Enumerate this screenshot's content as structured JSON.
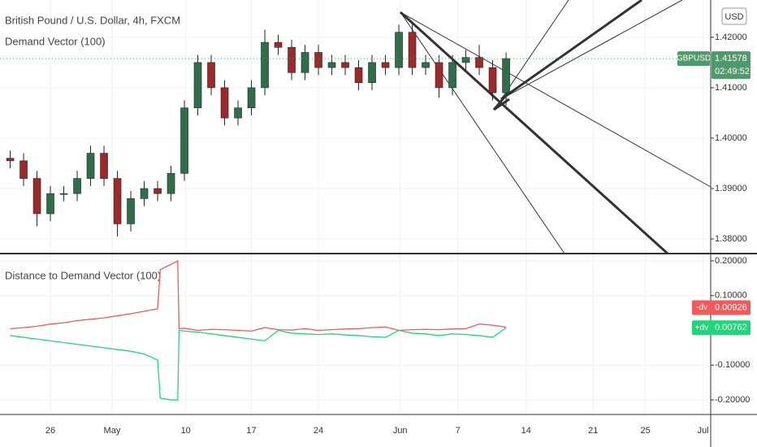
{
  "chart_data": [
    {
      "type": "candlestick",
      "title": "British Pound / U.S. Dollar, 4h, FXCM",
      "subtitle": "Demand Vector (100)",
      "currency": "USD",
      "symbol": "GBPUSD",
      "countdown": "02:49:52",
      "up_color": "#2f6e4a",
      "down_color": "#9c2a2a",
      "last_color": "#4f9a6c",
      "x": [
        -3,
        -2,
        -1,
        0,
        1,
        2,
        3,
        4,
        5,
        6,
        7,
        8,
        9,
        10,
        11,
        12,
        13,
        14,
        15,
        16,
        17,
        18,
        19,
        20,
        21,
        22,
        23,
        24,
        25,
        26,
        27,
        28,
        29,
        30,
        31,
        32,
        33,
        34
      ],
      "open": [
        1.396,
        1.3955,
        1.392,
        1.385,
        1.389,
        1.389,
        1.392,
        1.397,
        1.392,
        1.383,
        1.388,
        1.39,
        1.389,
        1.393,
        1.406,
        1.415,
        1.41,
        1.404,
        1.406,
        1.41,
        1.419,
        1.418,
        1.413,
        1.417,
        1.414,
        1.415,
        1.414,
        1.411,
        1.415,
        1.414,
        1.421,
        1.414,
        1.415,
        1.41,
        1.415,
        1.416,
        1.414,
        1.409
      ],
      "high": [
        1.3975,
        1.397,
        1.3935,
        1.3905,
        1.3905,
        1.3935,
        1.3985,
        1.3985,
        1.3935,
        1.3895,
        1.3915,
        1.3915,
        1.3945,
        1.4075,
        1.4165,
        1.4165,
        1.4115,
        1.4075,
        1.4115,
        1.4215,
        1.4205,
        1.4195,
        1.4185,
        1.4185,
        1.4165,
        1.4165,
        1.4155,
        1.4165,
        1.4165,
        1.4225,
        1.4225,
        1.4165,
        1.4165,
        1.4165,
        1.4175,
        1.4185,
        1.4155,
        1.417
      ],
      "low": [
        1.394,
        1.3905,
        1.3825,
        1.3835,
        1.3875,
        1.3875,
        1.3905,
        1.3905,
        1.3805,
        1.3815,
        1.3865,
        1.3875,
        1.3875,
        1.3915,
        1.4045,
        1.4085,
        1.4025,
        1.4025,
        1.4045,
        1.4085,
        1.4165,
        1.4115,
        1.4115,
        1.4125,
        1.4125,
        1.4125,
        1.4095,
        1.4095,
        1.4125,
        1.4125,
        1.4125,
        1.4125,
        1.408,
        1.4085,
        1.4135,
        1.4125,
        1.4075,
        1.4065
      ],
      "close": [
        1.3955,
        1.392,
        1.385,
        1.389,
        1.389,
        1.392,
        1.397,
        1.392,
        1.383,
        1.388,
        1.39,
        1.389,
        1.393,
        1.406,
        1.415,
        1.41,
        1.404,
        1.406,
        1.41,
        1.419,
        1.418,
        1.413,
        1.417,
        1.414,
        1.415,
        1.414,
        1.411,
        1.415,
        1.414,
        1.421,
        1.414,
        1.415,
        1.41,
        1.415,
        1.416,
        1.414,
        1.409,
        1.41578
      ],
      "xlim": [
        -3.76,
        49.27
      ],
      "ylim": [
        1.3771,
        1.4274
      ],
      "yticks": [
        {
          "value": 1.42,
          "label": "1.42000"
        },
        {
          "value": 1.41,
          "label": "1.41000"
        },
        {
          "value": 1.4,
          "label": "1.40000"
        },
        {
          "value": 1.39,
          "label": "1.39000"
        },
        {
          "value": 1.38,
          "label": "1.38000"
        }
      ],
      "grid": true
    },
    {
      "type": "line",
      "title": "Distance to Demand Vector (100)",
      "x": [
        -3,
        -2,
        -1,
        0,
        1,
        2,
        3,
        4,
        5,
        6,
        7,
        8,
        8.2,
        9,
        9.5,
        9.6,
        10,
        11,
        12,
        13,
        14,
        15,
        16,
        17,
        18,
        19,
        20,
        21,
        22,
        23,
        24,
        25,
        26,
        27,
        28,
        29,
        30,
        31,
        32,
        33,
        34
      ],
      "series": [
        {
          "name": "-dv",
          "color": "#f05a5a",
          "values": [
            0.005,
            0.008,
            0.012,
            0.018,
            0.022,
            0.028,
            0.032,
            0.036,
            0.042,
            0.048,
            0.055,
            0.062,
            0.175,
            0.19,
            0.2,
            0.005,
            0.006,
            0.0,
            0.003,
            0.002,
            0.0,
            -0.002,
            0.008,
            0.002,
            0.001,
            0.005,
            0.0,
            0.002,
            0.004,
            0.005,
            0.008,
            0.01,
            0.0,
            0.002,
            0.003,
            0.002,
            0.004,
            0.005,
            0.018,
            0.015,
            0.00926
          ]
        },
        {
          "name": "+dv",
          "color": "#1fd67a",
          "values": [
            -0.015,
            -0.02,
            -0.025,
            -0.03,
            -0.035,
            -0.04,
            -0.045,
            -0.05,
            -0.055,
            -0.06,
            -0.068,
            -0.085,
            -0.195,
            -0.2,
            -0.2,
            0.0,
            -0.002,
            -0.005,
            -0.01,
            -0.015,
            -0.02,
            -0.025,
            -0.03,
            0.0,
            -0.008,
            -0.01,
            -0.012,
            -0.01,
            -0.013,
            -0.015,
            -0.018,
            -0.02,
            0.0,
            -0.008,
            -0.01,
            -0.015,
            -0.01,
            -0.012,
            -0.015,
            -0.02,
            0.00762
          ]
        }
      ],
      "xlim": [
        -3.76,
        49.27
      ],
      "ylim": [
        -0.2419,
        0.2186
      ],
      "yticks": [
        {
          "value": 0.2,
          "label": "0.20000"
        },
        {
          "value": 0.1,
          "label": "0.10000"
        },
        {
          "value": -0.1,
          "label": "-0.10000"
        },
        {
          "value": -0.2,
          "label": "-0.20000"
        }
      ],
      "xticks": [
        {
          "value": 0,
          "label": "26"
        },
        {
          "value": 4.6,
          "label": "May"
        },
        {
          "value": 10.1,
          "label": "10"
        },
        {
          "value": 15,
          "label": "17"
        },
        {
          "value": 20,
          "label": "24"
        },
        {
          "value": 26.1,
          "label": "Jun"
        },
        {
          "value": 30.4,
          "label": "7"
        },
        {
          "value": 35.5,
          "label": "14"
        },
        {
          "value": 40.5,
          "label": "21"
        },
        {
          "value": 44.4,
          "label": "25"
        },
        {
          "value": 48.7,
          "label": "Jul"
        }
      ],
      "grid": true
    }
  ]
}
